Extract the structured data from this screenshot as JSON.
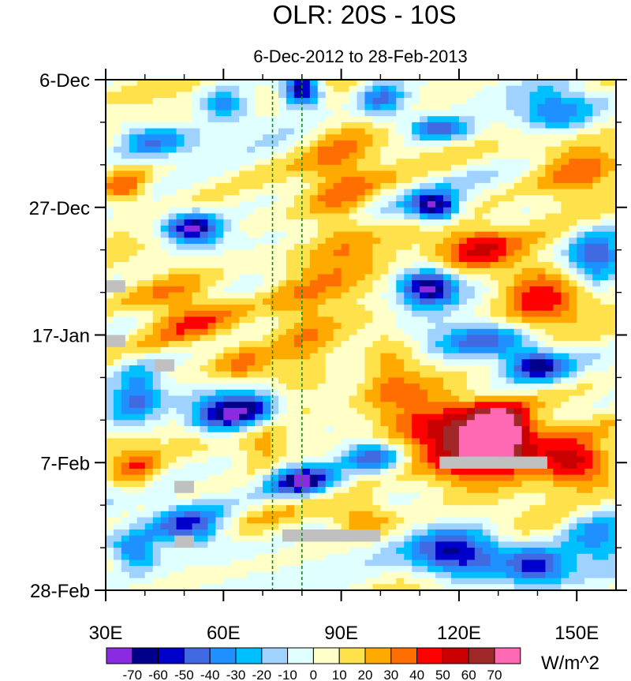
{
  "chart_data": {
    "type": "heatmap",
    "title": "OLR: 20S - 10S",
    "subtitle": "6-Dec-2012 to 28-Feb-2013",
    "x_range": [
      30,
      160
    ],
    "y_range_days": [
      0,
      84
    ],
    "x_ticks": [
      {
        "value": 30,
        "label": "30E"
      },
      {
        "value": 60,
        "label": "60E"
      },
      {
        "value": 90,
        "label": "90E"
      },
      {
        "value": 120,
        "label": "120E"
      },
      {
        "value": 150,
        "label": "150E"
      }
    ],
    "y_ticks": [
      {
        "day": 0,
        "label": "6-Dec"
      },
      {
        "day": 21,
        "label": "27-Dec"
      },
      {
        "day": 42,
        "label": "17-Jan"
      },
      {
        "day": 63,
        "label": "7-Feb"
      },
      {
        "day": 84,
        "label": "28-Feb"
      }
    ],
    "reference_lines_lon": [
      72.5,
      80
    ],
    "missing_data_boxes": [
      {
        "lon": [
          30,
          35
        ],
        "day": [
          33,
          35
        ]
      },
      {
        "lon": [
          30,
          35
        ],
        "day": [
          42,
          44
        ]
      },
      {
        "lon": [
          42.5,
          47.5
        ],
        "day": [
          46,
          48
        ]
      },
      {
        "lon": [
          47.5,
          52.5
        ],
        "day": [
          66,
          68
        ]
      },
      {
        "lon": [
          47.5,
          52.5
        ],
        "day": [
          75,
          77
        ]
      },
      {
        "lon": [
          75,
          100
        ],
        "day": [
          74,
          76
        ]
      },
      {
        "lon": [
          115,
          142.5
        ],
        "day": [
          62,
          64
        ]
      }
    ],
    "colorbar": {
      "units": "W/m^2",
      "labels": [
        "-70",
        "-60",
        "-50",
        "-40",
        "-30",
        "-20",
        "-10",
        "0",
        "10",
        "20",
        "30",
        "40",
        "50",
        "60",
        "70"
      ],
      "colors": [
        "#8a2be2",
        "#00008b",
        "#0000cd",
        "#4169e1",
        "#1e90ff",
        "#00bfff",
        "#a0d2ff",
        "#e0ffff",
        "#ffffc8",
        "#ffe14b",
        "#ffaa00",
        "#ff6e00",
        "#ff0000",
        "#c80000",
        "#a02828",
        "#ff69b4"
      ]
    },
    "features": [
      {
        "lon": 80,
        "day": 1.5,
        "v": -78,
        "sx": 5,
        "sy": 2.6
      },
      {
        "lon": 52,
        "day": 24.5,
        "v": -75,
        "sx": 7,
        "sy": 2.5
      },
      {
        "lon": 114,
        "day": 21,
        "v": -72,
        "sx": 6,
        "sy": 2.3
      },
      {
        "lon": 112,
        "day": 34,
        "v": -74,
        "sx": 7,
        "sy": 3
      },
      {
        "lon": 126,
        "day": 43,
        "v": -55,
        "sx": 14,
        "sy": 3
      },
      {
        "lon": 140,
        "day": 47,
        "v": -62,
        "sx": 8,
        "sy": 2.5
      },
      {
        "lon": 155,
        "day": 29,
        "v": -50,
        "sx": 7,
        "sy": 5
      },
      {
        "lon": 60,
        "day": 55,
        "v": -74,
        "sx": 8,
        "sy": 3
      },
      {
        "lon": 80,
        "day": 66,
        "v": -72,
        "sx": 8,
        "sy": 2.5
      },
      {
        "lon": 68,
        "day": 54,
        "v": -45,
        "sx": 6,
        "sy": 3
      },
      {
        "lon": 98,
        "day": 62,
        "v": -50,
        "sx": 8,
        "sy": 2.5
      },
      {
        "lon": 120,
        "day": 78,
        "v": -76,
        "sx": 12,
        "sy": 4
      },
      {
        "lon": 140,
        "day": 80,
        "v": -55,
        "sx": 8,
        "sy": 3
      },
      {
        "lon": 52,
        "day": 74,
        "v": -60,
        "sx": 10,
        "sy": 3.5
      },
      {
        "lon": 38,
        "day": 78,
        "v": -50,
        "sx": 6,
        "sy": 3
      },
      {
        "lon": 38,
        "day": 52,
        "v": -40,
        "sx": 6,
        "sy": 5
      },
      {
        "lon": 42,
        "day": 10,
        "v": -45,
        "sx": 10,
        "sy": 3
      },
      {
        "lon": 115,
        "day": 8,
        "v": -50,
        "sx": 8,
        "sy": 2
      },
      {
        "lon": 145,
        "day": 5,
        "v": -45,
        "sx": 10,
        "sy": 4
      },
      {
        "lon": 100,
        "day": 3,
        "v": -40,
        "sx": 6,
        "sy": 3
      },
      {
        "lon": 60,
        "day": 4,
        "v": -40,
        "sx": 6,
        "sy": 3
      },
      {
        "lon": 95,
        "day": 47,
        "v": -25,
        "sx": 7,
        "sy": 4
      },
      {
        "lon": 155,
        "day": 75,
        "v": -35,
        "sx": 8,
        "sy": 4
      },
      {
        "lon": 130,
        "day": 57,
        "v": 72,
        "sx": 8,
        "sy": 4
      },
      {
        "lon": 125,
        "day": 62,
        "v": 58,
        "sx": 14,
        "sy": 5
      },
      {
        "lon": 150,
        "day": 63,
        "v": 55,
        "sx": 10,
        "sy": 4
      },
      {
        "lon": 112,
        "day": 55,
        "v": 38,
        "sx": 12,
        "sy": 6
      },
      {
        "lon": 140,
        "day": 35,
        "v": 45,
        "sx": 10,
        "sy": 5
      },
      {
        "lon": 125,
        "day": 28,
        "v": 40,
        "sx": 10,
        "sy": 4
      },
      {
        "lon": 50,
        "day": 38,
        "v": 40,
        "sx": 12,
        "sy": 5
      },
      {
        "lon": 90,
        "day": 20,
        "v": 25,
        "sx": 9,
        "sy": 18
      },
      {
        "lon": 80,
        "day": 40,
        "v": 20,
        "sx": 8,
        "sy": 10
      },
      {
        "lon": 100,
        "day": 48,
        "v": 30,
        "sx": 8,
        "sy": 6
      },
      {
        "lon": 150,
        "day": 15,
        "v": 30,
        "sx": 10,
        "sy": 6
      },
      {
        "lon": 38,
        "day": 64,
        "v": 30,
        "sx": 6,
        "sy": 4
      },
      {
        "lon": 70,
        "day": 60,
        "v": 25,
        "sx": 6,
        "sy": 4
      },
      {
        "lon": 95,
        "day": 72,
        "v": 30,
        "sx": 8,
        "sy": 3
      },
      {
        "lon": 35,
        "day": 18,
        "v": 30,
        "sx": 5,
        "sy": 3
      },
      {
        "lon": 65,
        "day": 47,
        "v": 25,
        "sx": 7,
        "sy": 3
      }
    ]
  }
}
